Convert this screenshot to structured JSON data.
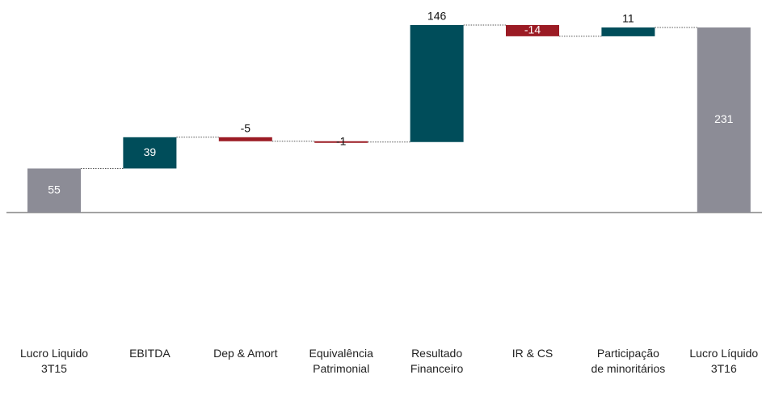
{
  "chart_data": {
    "type": "waterfall",
    "categories": [
      "Lucro Liquido 3T15",
      "EBITDA",
      "Dep & Amort",
      "Equivalência Patrimonial",
      "Resultado Financeiro",
      "IR & CS",
      "Participação de minoritários",
      "Lucro Líquido 3T16"
    ],
    "values": [
      55,
      39,
      -5,
      -1,
      146,
      -14,
      11,
      231
    ],
    "kinds": [
      "total",
      "delta",
      "delta",
      "delta",
      "delta",
      "delta",
      "delta",
      "total"
    ],
    "colors": {
      "total": "#8c8c96",
      "increase": "#004d5a",
      "decrease": "#9b1b24"
    }
  }
}
